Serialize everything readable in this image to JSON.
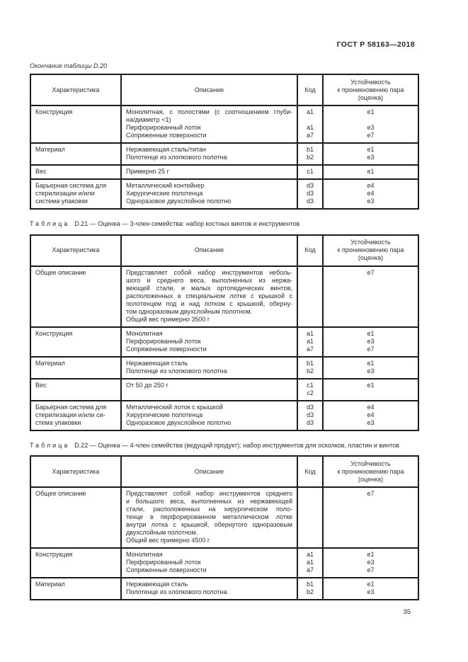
{
  "doc_header": {
    "standard_number": "ГОСТ Р 58163—2018"
  },
  "page_footer": {
    "page_number": "35"
  },
  "tables": [
    {
      "caption": {
        "text": "Окончание таблицы D.20"
      },
      "columns": {
        "characteristic": "Характеристика",
        "description": "Описание",
        "code": "Код",
        "rating_lines": [
          "Устойчивость",
          "к проникновению пара",
          "(оценка)"
        ]
      },
      "rows": [
        {
          "characteristic_lines": [
            "Конструкция"
          ],
          "description_lines": [
            "Монолитная, с полостями (с соотношением глуби-",
            "на/диаметр <1)",
            "Перфорированный лоток",
            "Сопряженные поверхности"
          ],
          "description_justified_lines": 1,
          "code_lines": [
            "a1",
            "",
            "a1",
            "a7"
          ],
          "rating_lines": [
            "e1",
            "",
            "e3",
            "e7"
          ]
        },
        {
          "characteristic_lines": [
            "Материал"
          ],
          "description_lines": [
            "Нержавеющая сталь/титан",
            "Полотенце из хлопкового полотна"
          ],
          "description_justified_lines": 0,
          "code_lines": [
            "b1",
            "b2"
          ],
          "rating_lines": [
            "e1",
            "e3"
          ]
        },
        {
          "characteristic_lines": [
            "Вес"
          ],
          "description_lines": [
            "Примерно 25 г"
          ],
          "description_justified_lines": 0,
          "code_lines": [
            "c1"
          ],
          "rating_lines": [
            "e1"
          ]
        },
        {
          "characteristic_lines": [
            "Барьерная система для",
            "стерилизации и/или",
            "система упаковки"
          ],
          "description_lines": [
            "Металлический контейнер",
            "Хирургические полотенца",
            "Одноразовое двухслойное полотно"
          ],
          "description_justified_lines": 0,
          "code_lines": [
            "d3",
            "d3",
            "d3"
          ],
          "rating_lines": [
            "e4",
            "e4",
            "e3"
          ]
        }
      ]
    },
    {
      "caption": {
        "prefix": "Таблица",
        "text": "D.21 — Оценка — 3-член семейства: набор костных винтов и инструментов"
      },
      "columns": {
        "characteristic": "Характеристика",
        "description": "Описание",
        "code": "Код",
        "rating_lines": [
          "Устойчивость",
          "к проникновению пара",
          "(оценка)"
        ]
      },
      "rows": [
        {
          "characteristic_lines": [
            "Общее описание"
          ],
          "description_lines": [
            "Представляет собой набор инструментов неболь-",
            "шого и среднего веса, выполненных из нержа-",
            "веющей стали, и малых ортопедических винтов,",
            "расположенных в специальном лотке с крышкой с",
            "полотенцем под и над лотком с крышкой, оберну-",
            "том одноразовым двухслойным полотном.",
            "Общий вес примерно 3500 г"
          ],
          "description_justified_lines": 5,
          "code_lines": [],
          "rating_lines": [
            "e7"
          ]
        },
        {
          "characteristic_lines": [
            "Конструкция"
          ],
          "description_lines": [
            "Монолитная",
            "Перфорированный лоток",
            "Сопряженные поверхности"
          ],
          "description_justified_lines": 0,
          "code_lines": [
            "a1",
            "a1",
            "a7"
          ],
          "rating_lines": [
            "e1",
            "e3",
            "e7"
          ]
        },
        {
          "characteristic_lines": [
            "Материал"
          ],
          "description_lines": [
            "Нержавеющая сталь",
            "Полотенце из хлопкового полотна"
          ],
          "description_justified_lines": 0,
          "code_lines": [
            "b1",
            "b2"
          ],
          "rating_lines": [
            "e1",
            "e3"
          ]
        },
        {
          "characteristic_lines": [
            "Вес"
          ],
          "description_lines": [
            "От 50 до 250 г"
          ],
          "description_justified_lines": 0,
          "code_lines": [
            "c1",
            "c2"
          ],
          "rating_lines": [
            "e1"
          ]
        },
        {
          "characteristic_lines": [
            "Барьерная система для",
            "стерилизации и/или си-",
            "стема упаковки"
          ],
          "description_lines": [
            "Металлический лоток с крышкой",
            "Хирургические полотенца",
            "Одноразовое двухслойное полотно"
          ],
          "description_justified_lines": 0,
          "code_lines": [
            "d3",
            "d3",
            "d3"
          ],
          "rating_lines": [
            "e4",
            "e4",
            "e3"
          ]
        }
      ]
    },
    {
      "caption": {
        "prefix": "Таблица",
        "text": "D.22 — Оценка — 4-член семейства (ведущий продукт): набор инструментов для осколков, пластин и винтов"
      },
      "columns": {
        "characteristic": "Характеристика",
        "description": "Описание",
        "code": "Код",
        "rating_lines": [
          "Устойчивость",
          "к проникновению пара",
          "(оценка)"
        ]
      },
      "rows": [
        {
          "characteristic_lines": [
            "Общее описание"
          ],
          "description_lines": [
            "Представляет собой набор инструментов среднего",
            "и большого веса, выполненных из нержавеющей",
            "стали, расположенных на хирургическом поло-",
            "тенце в перфорированном металлическом лотке",
            "внутри лотка с крышкой, обернутого одноразовым",
            "двухслойным полотном.",
            "Общий вес примерно 4500 г"
          ],
          "description_justified_lines": 5,
          "code_lines": [],
          "rating_lines": [
            "e7"
          ]
        },
        {
          "characteristic_lines": [
            "Конструкция"
          ],
          "description_lines": [
            "Монолитная",
            "Перфорированный лоток",
            "Сопряженные поверхности"
          ],
          "description_justified_lines": 0,
          "code_lines": [
            "a1",
            "a1",
            "a7"
          ],
          "rating_lines": [
            "e1",
            "e3",
            "e7"
          ]
        },
        {
          "characteristic_lines": [
            "Материал"
          ],
          "description_lines": [
            "Нержавеющая сталь",
            "Полотенце из хлопкового полотна"
          ],
          "description_justified_lines": 0,
          "code_lines": [
            "b1",
            "b2"
          ],
          "rating_lines": [
            "e1",
            "e3"
          ]
        }
      ]
    }
  ]
}
